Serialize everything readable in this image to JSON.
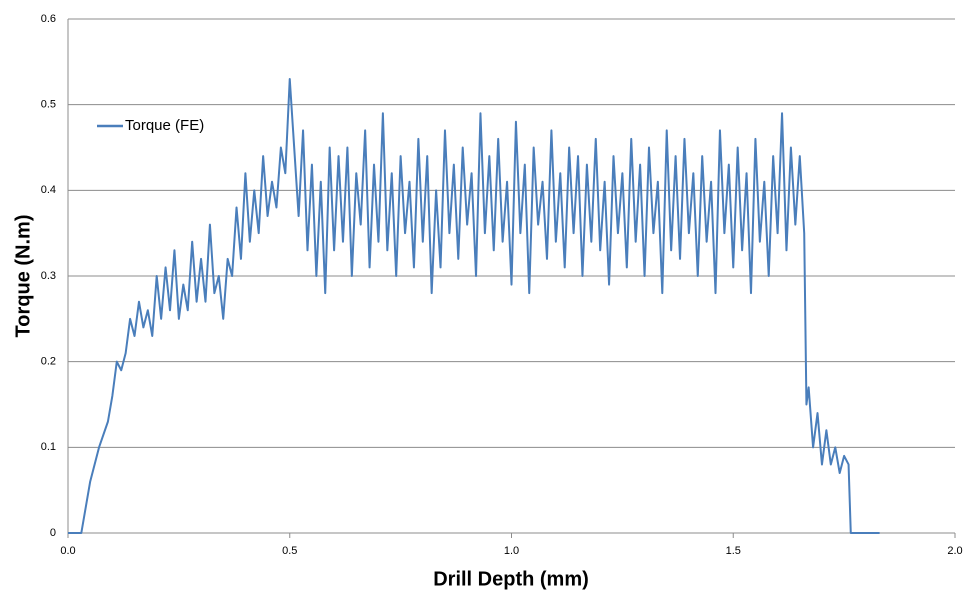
{
  "chart_data": {
    "type": "line",
    "xlabel": "Drill Depth (mm)",
    "ylabel": "Torque (N.m)",
    "xlim": [
      0,
      2
    ],
    "xticks": [
      {
        "value": 0,
        "label": "0.0"
      },
      0.5,
      {
        "value": 1,
        "label": "1.0"
      },
      1.5,
      {
        "value": 2,
        "label": "2.0"
      }
    ],
    "ylim": [
      0,
      0.6
    ],
    "yticks": [
      0,
      0.1,
      0.2,
      0.3,
      0.4,
      0.5,
      0.6
    ],
    "grid": true,
    "legend": "upper left",
    "x": [
      0,
      0.03,
      0.05,
      0.07,
      0.09,
      0.1,
      0.11,
      0.12,
      0.13,
      0.14,
      0.15,
      0.16,
      0.17,
      0.18,
      0.19,
      0.2,
      0.21,
      0.22,
      0.23,
      0.24,
      0.25,
      0.26,
      0.27,
      0.28,
      0.29,
      0.3,
      0.31,
      0.32,
      0.33,
      0.34,
      0.35,
      0.36,
      0.37,
      0.38,
      0.39,
      0.4,
      0.41,
      0.42,
      0.43,
      0.44,
      0.45,
      0.46,
      0.47,
      0.48,
      0.49,
      0.5,
      0.51,
      0.52,
      0.53,
      0.54,
      0.55,
      0.56,
      0.57,
      0.58,
      0.59,
      0.6,
      0.61,
      0.62,
      0.63,
      0.64,
      0.65,
      0.66,
      0.67,
      0.68,
      0.69,
      0.7,
      0.71,
      0.72,
      0.73,
      0.74,
      0.75,
      0.76,
      0.77,
      0.78,
      0.79,
      0.8,
      0.81,
      0.82,
      0.83,
      0.84,
      0.85,
      0.86,
      0.87,
      0.88,
      0.89,
      0.9,
      0.91,
      0.92,
      0.93,
      0.94,
      0.95,
      0.96,
      0.97,
      0.98,
      0.99,
      1.0,
      1.01,
      1.02,
      1.03,
      1.04,
      1.05,
      1.06,
      1.07,
      1.08,
      1.09,
      1.1,
      1.11,
      1.12,
      1.13,
      1.14,
      1.15,
      1.16,
      1.17,
      1.18,
      1.19,
      1.2,
      1.21,
      1.22,
      1.23,
      1.24,
      1.25,
      1.26,
      1.27,
      1.28,
      1.29,
      1.3,
      1.31,
      1.32,
      1.33,
      1.34,
      1.35,
      1.36,
      1.37,
      1.38,
      1.39,
      1.4,
      1.41,
      1.42,
      1.43,
      1.44,
      1.45,
      1.46,
      1.47,
      1.48,
      1.49,
      1.5,
      1.51,
      1.52,
      1.53,
      1.54,
      1.55,
      1.56,
      1.57,
      1.58,
      1.59,
      1.6,
      1.61,
      1.62,
      1.63,
      1.64,
      1.65,
      1.66,
      1.665,
      1.67,
      1.68,
      1.69,
      1.7,
      1.71,
      1.72,
      1.73,
      1.74,
      1.75,
      1.76,
      1.765,
      1.83
    ],
    "series": [
      {
        "name": "Torque (FE)",
        "color": "#4a7ebb",
        "values": [
          0,
          0,
          0.06,
          0.1,
          0.13,
          0.16,
          0.2,
          0.19,
          0.21,
          0.25,
          0.23,
          0.27,
          0.24,
          0.26,
          0.23,
          0.3,
          0.25,
          0.31,
          0.26,
          0.33,
          0.25,
          0.29,
          0.26,
          0.34,
          0.27,
          0.32,
          0.27,
          0.36,
          0.28,
          0.3,
          0.25,
          0.32,
          0.3,
          0.38,
          0.32,
          0.42,
          0.34,
          0.4,
          0.35,
          0.44,
          0.37,
          0.41,
          0.38,
          0.45,
          0.42,
          0.53,
          0.45,
          0.37,
          0.47,
          0.33,
          0.43,
          0.3,
          0.41,
          0.28,
          0.45,
          0.33,
          0.44,
          0.34,
          0.45,
          0.3,
          0.42,
          0.36,
          0.47,
          0.31,
          0.43,
          0.34,
          0.49,
          0.33,
          0.42,
          0.3,
          0.44,
          0.35,
          0.41,
          0.31,
          0.46,
          0.34,
          0.44,
          0.28,
          0.4,
          0.31,
          0.47,
          0.35,
          0.43,
          0.32,
          0.45,
          0.36,
          0.42,
          0.3,
          0.49,
          0.35,
          0.44,
          0.33,
          0.46,
          0.34,
          0.41,
          0.29,
          0.48,
          0.35,
          0.43,
          0.28,
          0.45,
          0.36,
          0.41,
          0.32,
          0.47,
          0.34,
          0.42,
          0.31,
          0.45,
          0.35,
          0.44,
          0.3,
          0.43,
          0.34,
          0.46,
          0.33,
          0.41,
          0.29,
          0.44,
          0.35,
          0.42,
          0.31,
          0.46,
          0.34,
          0.43,
          0.3,
          0.45,
          0.35,
          0.41,
          0.28,
          0.47,
          0.33,
          0.44,
          0.32,
          0.46,
          0.35,
          0.42,
          0.3,
          0.44,
          0.34,
          0.41,
          0.28,
          0.47,
          0.35,
          0.43,
          0.31,
          0.45,
          0.33,
          0.42,
          0.28,
          0.46,
          0.34,
          0.41,
          0.3,
          0.44,
          0.35,
          0.49,
          0.33,
          0.45,
          0.36,
          0.44,
          0.35,
          0.15,
          0.17,
          0.1,
          0.14,
          0.08,
          0.12,
          0.08,
          0.1,
          0.07,
          0.09,
          0.08,
          0,
          0
        ]
      }
    ]
  }
}
